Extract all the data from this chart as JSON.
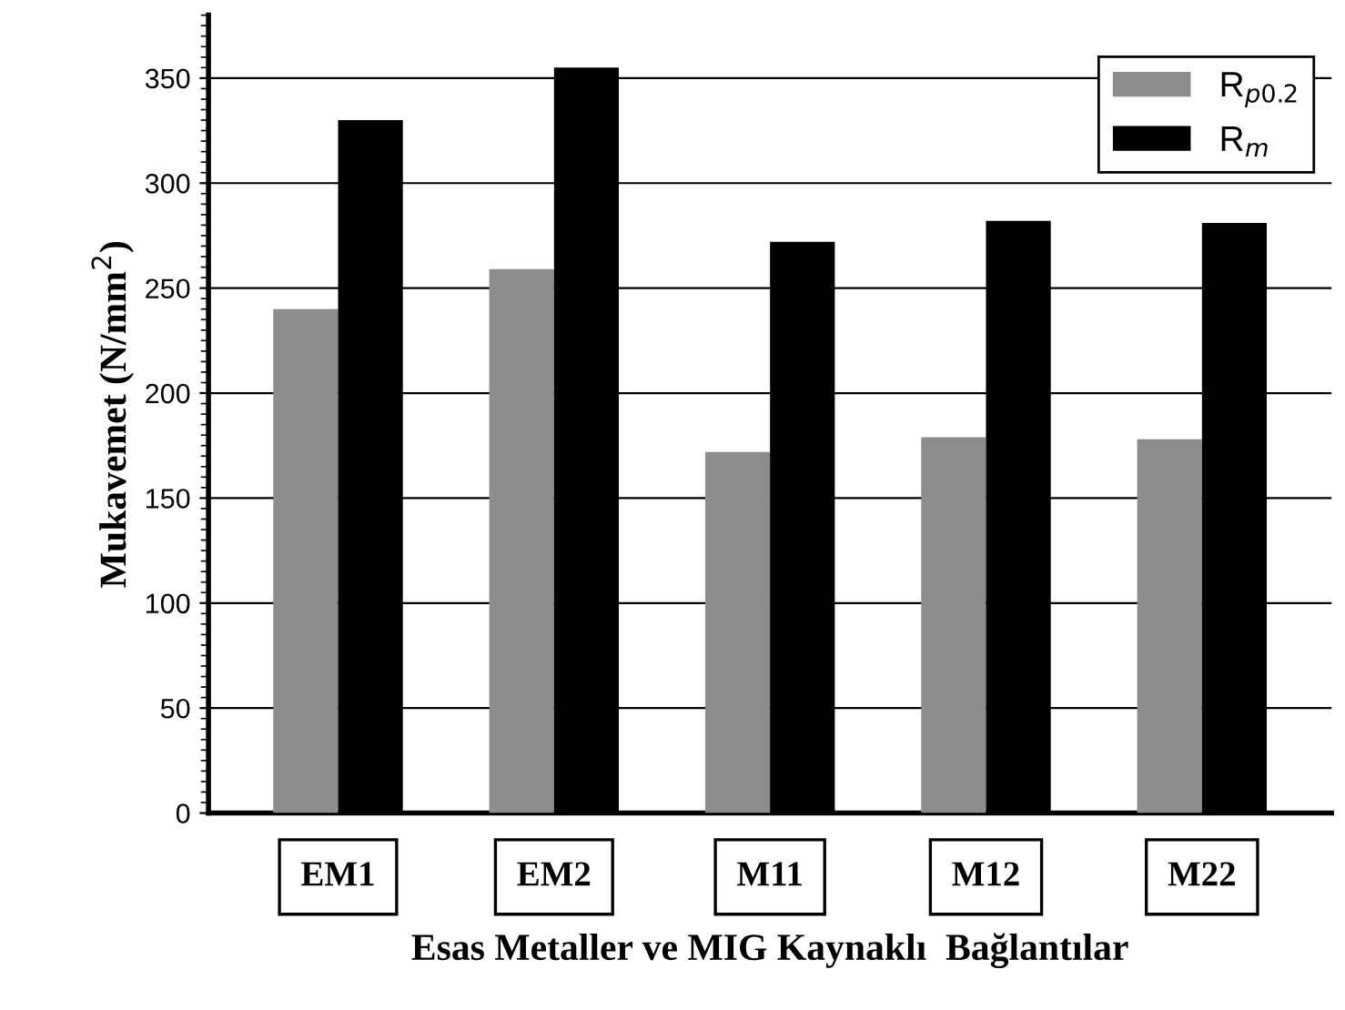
{
  "chart_data": {
    "type": "bar",
    "xlabel": "Esas Metaller ve MIG Kaynaklı  Bağlantılar",
    "ylabel": "Mukavemet (N/mm$^{2}$)",
    "categories": [
      "EM1",
      "EM2",
      "M11",
      "M12",
      "M22"
    ],
    "series": [
      {
        "name": "R$_{p0.2}$",
        "color": "#8c8c8c",
        "values": [
          240,
          259,
          172,
          179,
          178
        ]
      },
      {
        "name": "R$_{m}$",
        "color": "#000000",
        "values": [
          330,
          355,
          272,
          282,
          281
        ]
      }
    ],
    "ylim": [
      0,
      380
    ],
    "yticks": [
      0,
      50,
      100,
      150,
      200,
      250,
      300,
      350
    ],
    "grid": "y",
    "legend": "top right"
  }
}
